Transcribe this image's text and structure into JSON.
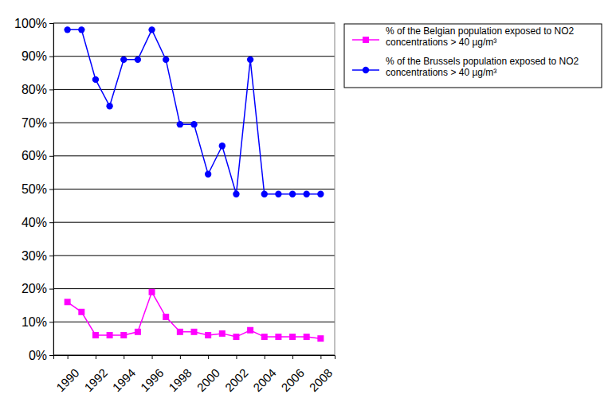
{
  "chart_data": {
    "type": "line",
    "x": [
      1990,
      1991,
      1992,
      1993,
      1994,
      1995,
      1996,
      1997,
      1998,
      1999,
      2000,
      2001,
      2002,
      2003,
      2004,
      2005,
      2006,
      2007,
      2008
    ],
    "xlim": [
      1989,
      2009
    ],
    "xticks": [
      1990,
      1992,
      1994,
      1996,
      1998,
      2000,
      2002,
      2004,
      2006,
      2008
    ],
    "ylim": [
      0,
      100
    ],
    "yticks": [
      {
        "value": 0,
        "label": "0%"
      },
      {
        "value": 10,
        "label": "10%"
      },
      {
        "value": 20,
        "label": "20%"
      },
      {
        "value": 30,
        "label": "30%"
      },
      {
        "value": 40,
        "label": "40%"
      },
      {
        "value": 50,
        "label": "50%"
      },
      {
        "value": 60,
        "label": "60%"
      },
      {
        "value": 70,
        "label": "70%"
      },
      {
        "value": 80,
        "label": "80%"
      },
      {
        "value": 90,
        "label": "90%"
      },
      {
        "value": 100,
        "label": "100%"
      }
    ],
    "grid": true,
    "legend": "top-right",
    "series": [
      {
        "name": "% of the Belgian population exposed to NO2 concentrations > 40 µg/m³",
        "color": "#ff00ff",
        "marker": "square",
        "values": [
          16,
          13,
          6,
          6,
          6,
          7,
          19,
          11.5,
          7,
          7,
          6,
          6.5,
          5.5,
          7.5,
          5.5,
          5.5,
          5.5,
          5.5,
          5
        ]
      },
      {
        "name": "% of the Brussels population exposed to NO2 concentrations > 40 µg/m³",
        "color": "#0000ff",
        "marker": "circle",
        "values": [
          98,
          98,
          83,
          75,
          89,
          89,
          98,
          89,
          69.5,
          69.5,
          54.5,
          63,
          48.5,
          89,
          48.5,
          48.5,
          48.5,
          48.5,
          48.5
        ]
      }
    ]
  }
}
